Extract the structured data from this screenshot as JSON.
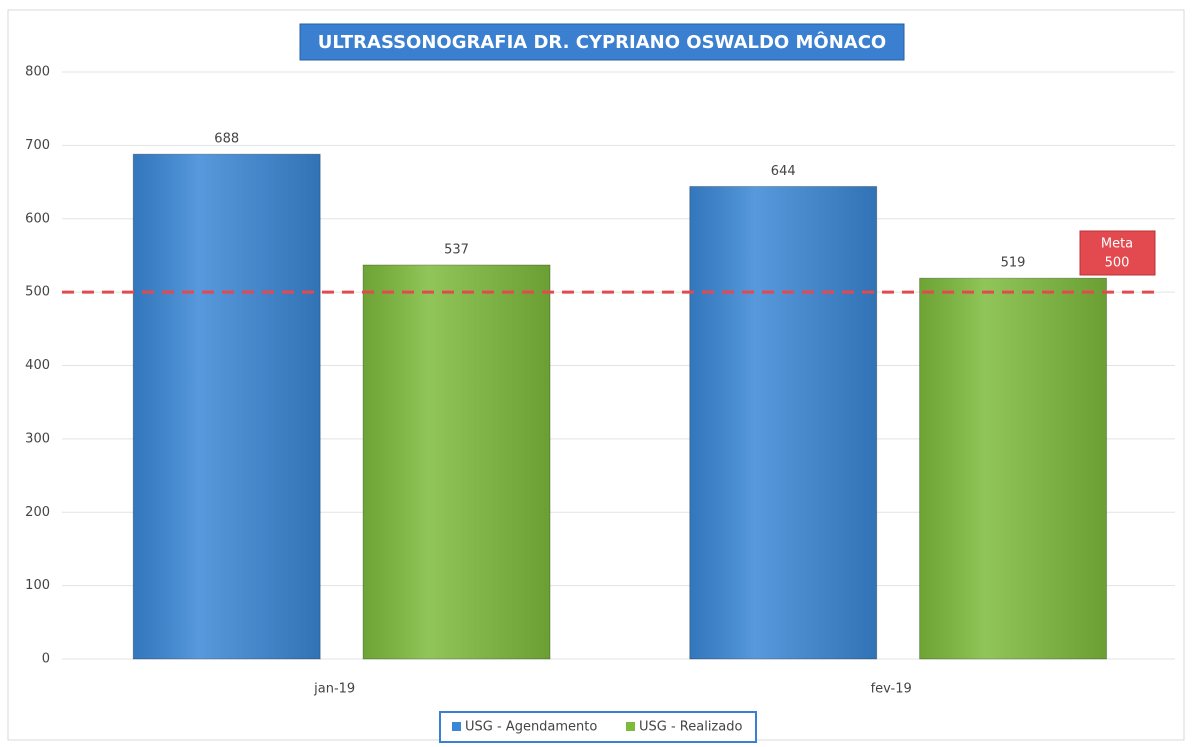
{
  "chart_data": {
    "type": "bar",
    "title": "ULTRASSONOGRAFIA DR. CYPRIANO OSWALDO MÔNACO",
    "categories": [
      "jan-19",
      "fev-19"
    ],
    "series": [
      {
        "name": "USG - Agendamento",
        "color": "#3a87d6",
        "values": [
          688,
          644
        ]
      },
      {
        "name": "USG - Realizado",
        "color": "#7dbb3c",
        "values": [
          537,
          519
        ]
      }
    ],
    "target": {
      "label": "Meta",
      "value": 500,
      "color": "#e24a4f"
    },
    "ylim": [
      0,
      800
    ],
    "yticks": [
      0,
      100,
      200,
      300,
      400,
      500,
      600,
      700,
      800
    ],
    "grid": true,
    "legend": "bottom"
  }
}
